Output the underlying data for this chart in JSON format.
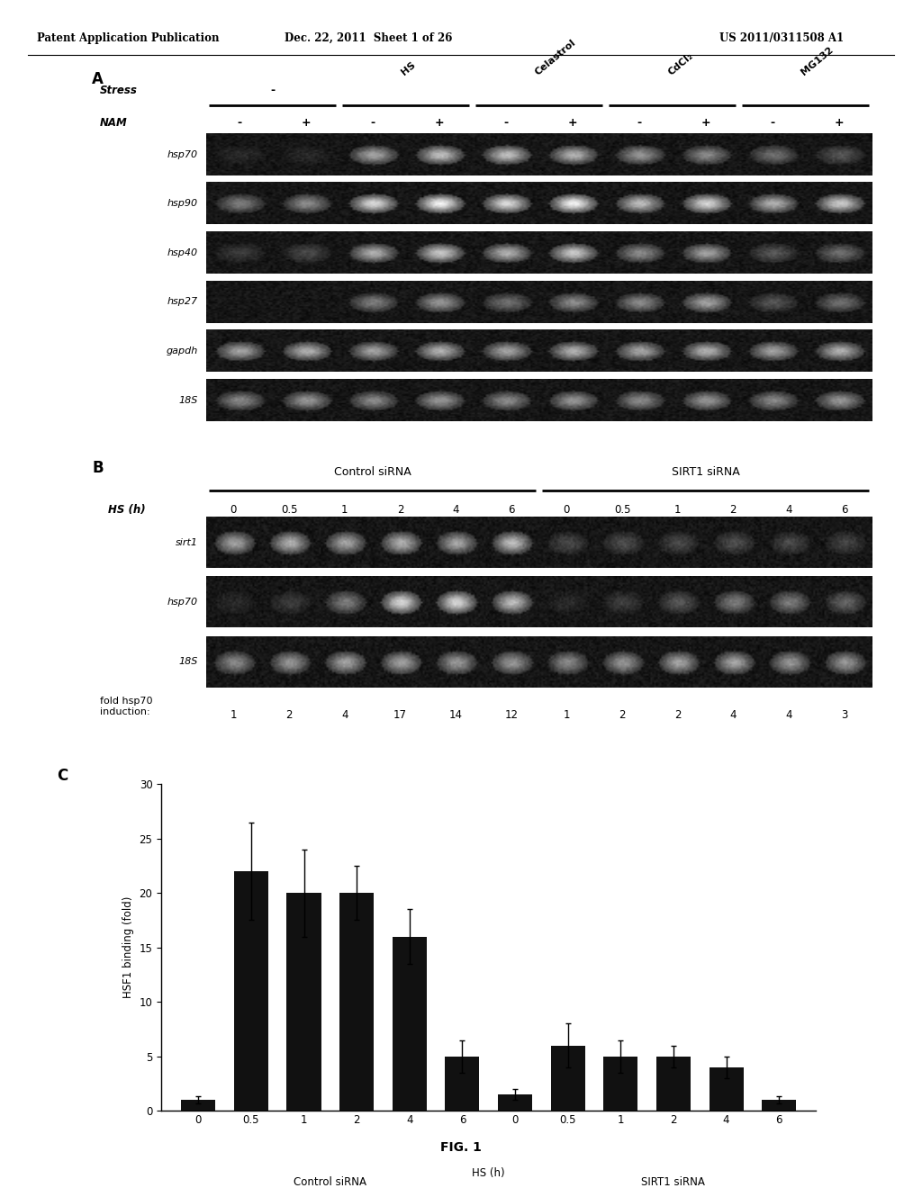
{
  "header_left": "Patent Application Publication",
  "header_mid": "Dec. 22, 2011  Sheet 1 of 26",
  "header_right": "US 2011/0311508 A1",
  "panel_a_label": "A",
  "panel_b_label": "B",
  "panel_c_label": "C",
  "panel_a_stress_labels": [
    "-",
    "HS",
    "Celastrol",
    "CdCl₂",
    "MG132"
  ],
  "panel_a_nam_labels": [
    "-",
    "+",
    "-",
    "+",
    "-",
    "+",
    "-",
    "+",
    "-",
    "+"
  ],
  "panel_a_row_labels": [
    "hsp70",
    "hsp90",
    "hsp40",
    "hsp27",
    "gapdh",
    "18S"
  ],
  "panel_a_band_intensities": {
    "hsp70": [
      0.08,
      0.08,
      0.55,
      0.65,
      0.65,
      0.6,
      0.5,
      0.45,
      0.35,
      0.25
    ],
    "hsp90": [
      0.4,
      0.45,
      0.75,
      0.85,
      0.75,
      0.85,
      0.65,
      0.75,
      0.6,
      0.7
    ],
    "hsp40": [
      0.15,
      0.2,
      0.6,
      0.7,
      0.6,
      0.7,
      0.45,
      0.55,
      0.25,
      0.35
    ],
    "hsp27": [
      0.03,
      0.03,
      0.4,
      0.5,
      0.35,
      0.45,
      0.45,
      0.55,
      0.25,
      0.35
    ],
    "gapdh": [
      0.55,
      0.6,
      0.55,
      0.6,
      0.55,
      0.6,
      0.55,
      0.6,
      0.55,
      0.6
    ],
    "18S": [
      0.45,
      0.5,
      0.45,
      0.5,
      0.45,
      0.5,
      0.45,
      0.5,
      0.45,
      0.5
    ]
  },
  "panel_b_hs_labels": [
    "0",
    "0.5",
    "1",
    "2",
    "4",
    "6",
    "0",
    "0.5",
    "1",
    "2",
    "4",
    "6"
  ],
  "panel_b_row_labels": [
    "sirt1",
    "hsp70",
    "18S"
  ],
  "panel_b_group_labels": [
    "Control siRNA",
    "SIRT1 siRNA"
  ],
  "panel_b_fold_label": "fold hsp70\ninduction:",
  "panel_b_fold_values": [
    "1",
    "2",
    "4",
    "17",
    "14",
    "12",
    "1",
    "2",
    "2",
    "4",
    "4",
    "3"
  ],
  "panel_b_band_intensities": {
    "sirt1": [
      0.55,
      0.6,
      0.55,
      0.6,
      0.55,
      0.65,
      0.2,
      0.22,
      0.2,
      0.22,
      0.2,
      0.18
    ],
    "hsp70": [
      0.08,
      0.15,
      0.4,
      0.75,
      0.75,
      0.65,
      0.08,
      0.15,
      0.25,
      0.4,
      0.4,
      0.3
    ],
    "18S": [
      0.45,
      0.5,
      0.55,
      0.55,
      0.5,
      0.5,
      0.45,
      0.5,
      0.55,
      0.55,
      0.5,
      0.5
    ]
  },
  "bar_values": [
    1.0,
    22.0,
    20.0,
    20.0,
    16.0,
    5.0,
    1.5,
    6.0,
    5.0,
    5.0,
    4.0,
    1.0
  ],
  "bar_errors": [
    0.3,
    4.5,
    4.0,
    2.5,
    2.5,
    1.5,
    0.5,
    2.0,
    1.5,
    1.0,
    1.0,
    0.3
  ],
  "bar_xtick_labels": [
    "0",
    "0.5",
    "1",
    "2",
    "4",
    "6",
    "0",
    "0.5",
    "1",
    "2",
    "4",
    "6"
  ],
  "bar_xlabel": "HS (h)",
  "bar_ylabel": "HSF1 binding (fold)",
  "bar_ylim": [
    0,
    30
  ],
  "bar_yticks": [
    0,
    5,
    10,
    15,
    20,
    25,
    30
  ],
  "bar_group1_label": "Control siRNA",
  "bar_group2_label": "SIRT1 siRNA",
  "bar_color": "#111111",
  "fig_label": "FIG. 1",
  "background_color": "#ffffff"
}
